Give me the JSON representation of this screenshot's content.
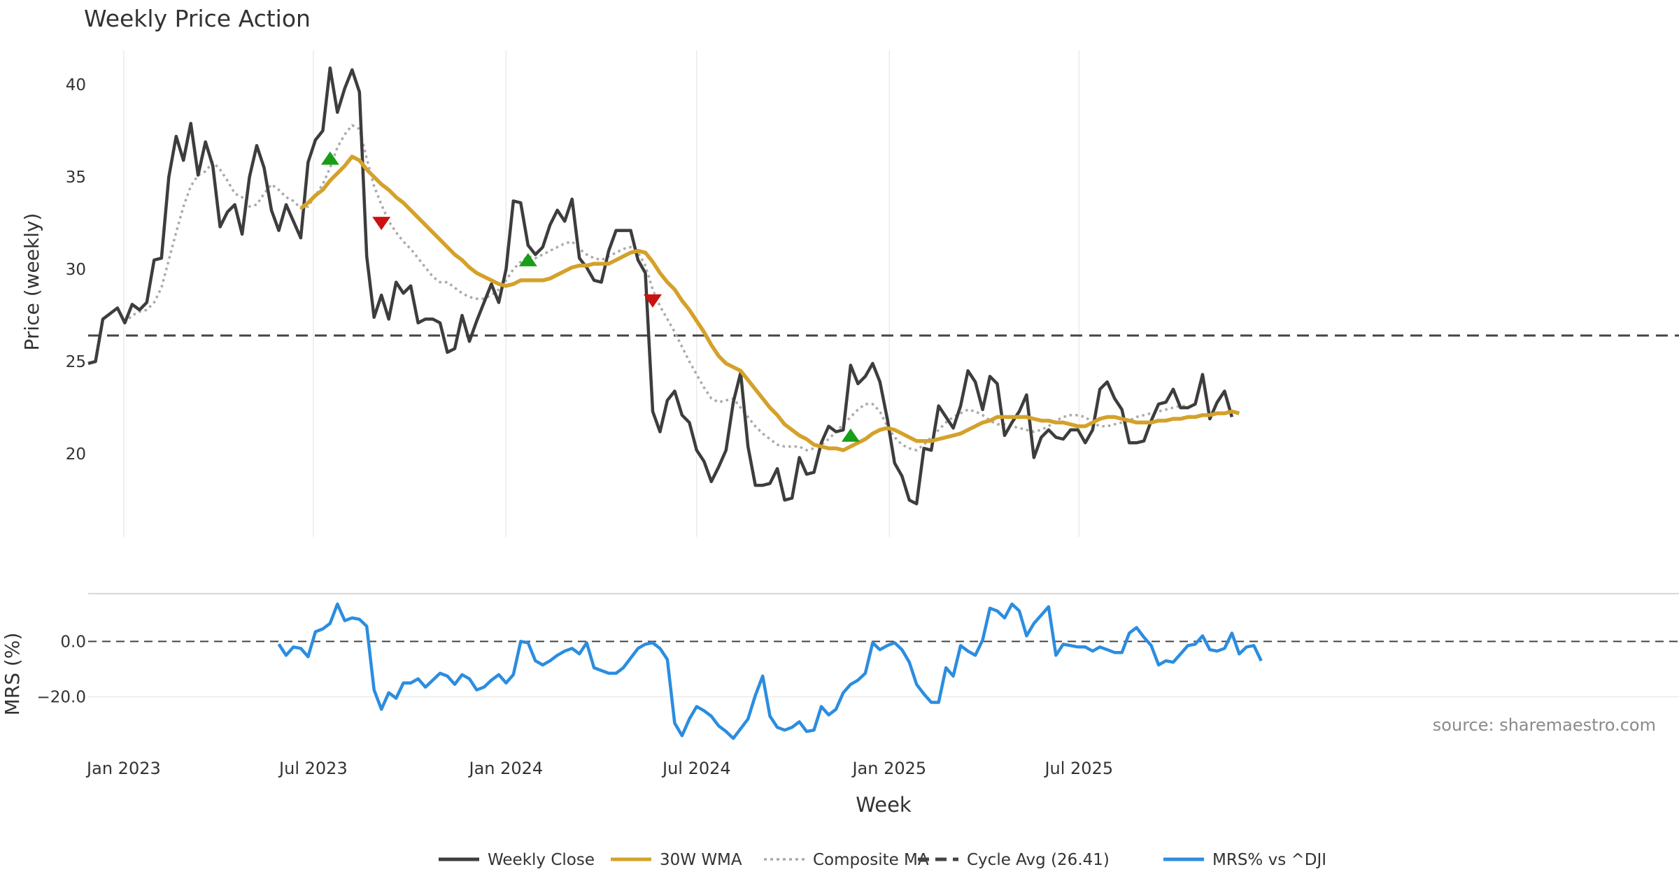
{
  "chart_data": [
    {
      "type": "line",
      "title": "Weekly Price Action",
      "ylabel": "Price (weekly)",
      "xlabel": "",
      "ylim": [
        15.5,
        42.5
      ],
      "yticks": [
        20,
        25,
        30,
        35,
        40
      ],
      "grid": "vertical",
      "x_start": "2022-11-28",
      "x_step_days": 7,
      "series": [
        {
          "name": "Weekly Close",
          "color": "#3d3d3d",
          "style": "solid",
          "start_index": 0,
          "values": [
            24.9,
            25.0,
            27.3,
            27.6,
            27.9,
            27.1,
            28.1,
            27.8,
            28.2,
            30.5,
            30.6,
            35.0,
            37.2,
            35.9,
            37.9,
            35.1,
            36.9,
            35.6,
            32.3,
            33.1,
            33.5,
            31.9,
            35.0,
            36.7,
            35.5,
            33.2,
            32.1,
            33.5,
            32.6,
            31.7,
            35.8,
            37.0,
            37.5,
            40.9,
            38.5,
            39.8,
            40.8,
            39.6,
            30.7,
            27.4,
            28.6,
            27.3,
            29.3,
            28.7,
            29.1,
            27.1,
            27.3,
            27.3,
            27.1,
            25.5,
            25.7,
            27.5,
            26.1,
            27.2,
            28.2,
            29.2,
            28.2,
            30.0,
            33.7,
            33.6,
            31.3,
            30.8,
            31.2,
            32.4,
            33.2,
            32.6,
            33.8,
            30.6,
            30.1,
            29.4,
            29.3,
            31.0,
            32.1,
            32.1,
            32.1,
            30.5,
            29.8,
            22.3,
            21.2,
            22.9,
            23.4,
            22.1,
            21.7,
            20.2,
            19.6,
            18.5,
            19.3,
            20.2,
            22.8,
            24.4,
            20.4,
            18.3,
            18.3,
            18.4,
            19.2,
            17.5,
            17.6,
            19.8,
            18.9,
            19.0,
            20.6,
            21.5,
            21.2,
            21.3,
            24.8,
            23.8,
            24.2,
            24.9,
            23.9,
            21.9,
            19.5,
            18.8,
            17.5,
            17.3,
            20.3,
            20.2,
            22.6,
            22.0,
            21.4,
            22.6,
            24.5,
            23.9,
            22.4,
            24.2,
            23.8,
            21.0,
            21.7,
            22.3,
            23.2,
            19.8,
            20.9,
            21.3,
            20.9,
            20.8,
            21.3,
            21.3,
            20.6,
            21.3,
            23.5,
            23.9,
            23.0,
            22.4,
            20.6,
            20.6,
            20.7,
            21.8,
            22.7,
            22.8,
            23.5,
            22.5,
            22.5,
            22.7,
            24.3,
            21.9,
            22.8,
            23.4,
            22.0
          ]
        },
        {
          "name": "Composite MA",
          "color": "#aaaaaa",
          "style": "dotted",
          "start_index": 5,
          "values": [
            27.1,
            27.5,
            27.7,
            27.8,
            28.2,
            29.0,
            30.5,
            32.0,
            33.4,
            34.5,
            35.1,
            35.3,
            35.8,
            35.4,
            34.8,
            34.1,
            33.9,
            33.4,
            33.5,
            34.1,
            34.6,
            34.3,
            33.9,
            33.7,
            33.3,
            33.4,
            34.0,
            34.6,
            35.5,
            36.6,
            37.3,
            37.8,
            37.6,
            36.0,
            34.5,
            33.5,
            32.6,
            32.0,
            31.5,
            31.1,
            30.6,
            30.1,
            29.6,
            29.3,
            29.3,
            29.0,
            28.7,
            28.5,
            28.4,
            28.4,
            28.6,
            28.9,
            29.4,
            30.0,
            30.4,
            30.7,
            30.6,
            30.8,
            31.0,
            31.2,
            31.4,
            31.5,
            31.1,
            30.8,
            30.6,
            30.5,
            30.7,
            30.9,
            31.1,
            31.2,
            30.9,
            30.2,
            28.9,
            28.0,
            27.3,
            26.6,
            25.8,
            25.0,
            24.3,
            23.6,
            23.0,
            22.8,
            22.9,
            23.0,
            22.5,
            22.0,
            21.5,
            21.1,
            20.8,
            20.5,
            20.4,
            20.4,
            20.4,
            20.2,
            20.3,
            20.5,
            20.8,
            21.2,
            21.6,
            22.0,
            22.4,
            22.7,
            22.7,
            22.3,
            21.5,
            20.9,
            20.5,
            20.3,
            20.2,
            20.5,
            20.9,
            21.3,
            21.7,
            22.0,
            22.2,
            22.4,
            22.3,
            22.1,
            21.8,
            21.6,
            21.6,
            21.5,
            21.4,
            21.3,
            21.2,
            21.3,
            21.5,
            21.8,
            22.0,
            22.1,
            22.1,
            22.0,
            21.7,
            21.5,
            21.5,
            21.6,
            21.7,
            21.8,
            22.0,
            22.1,
            22.2,
            22.3,
            22.4,
            22.5,
            22.6,
            22.6
          ]
        },
        {
          "name": "30W WMA",
          "color": "#d4a12a",
          "style": "solid",
          "start_index": 29,
          "values": [
            33.3,
            33.6,
            34.0,
            34.3,
            34.8,
            35.2,
            35.6,
            36.1,
            35.9,
            35.4,
            35.0,
            34.6,
            34.3,
            33.9,
            33.6,
            33.2,
            32.8,
            32.4,
            32.0,
            31.6,
            31.2,
            30.8,
            30.5,
            30.1,
            29.8,
            29.6,
            29.4,
            29.2,
            29.1,
            29.2,
            29.4,
            29.4,
            29.4,
            29.4,
            29.5,
            29.7,
            29.9,
            30.1,
            30.2,
            30.2,
            30.3,
            30.3,
            30.3,
            30.5,
            30.7,
            30.9,
            31.0,
            30.9,
            30.4,
            29.8,
            29.3,
            28.9,
            28.3,
            27.8,
            27.2,
            26.6,
            25.9,
            25.3,
            24.9,
            24.7,
            24.5,
            24.0,
            23.5,
            23.0,
            22.5,
            22.1,
            21.6,
            21.3,
            21.0,
            20.8,
            20.5,
            20.4,
            20.3,
            20.3,
            20.2,
            20.4,
            20.6,
            20.8,
            21.1,
            21.3,
            21.4,
            21.3,
            21.1,
            20.9,
            20.7,
            20.7,
            20.7,
            20.8,
            20.9,
            21.0,
            21.1,
            21.3,
            21.5,
            21.7,
            21.8,
            22.0,
            22.0,
            22.0,
            22.0,
            22.0,
            21.9,
            21.8,
            21.8,
            21.7,
            21.7,
            21.6,
            21.5,
            21.5,
            21.7,
            21.9,
            22.0,
            22.0,
            21.9,
            21.8,
            21.7,
            21.7,
            21.7,
            21.8,
            21.8,
            21.9,
            21.9,
            22.0,
            22.0,
            22.1,
            22.1,
            22.2,
            22.2,
            22.3,
            22.2
          ]
        }
      ],
      "reference_line": {
        "name": "Cycle Avg (26.41)",
        "value": 26.41,
        "color": "#444444",
        "style": "dashed"
      },
      "markers": [
        {
          "type": "up",
          "index": 33,
          "y": 36.0,
          "color": "#1a9e1a"
        },
        {
          "type": "down",
          "index": 40,
          "y": 32.5,
          "color": "#cc1111"
        },
        {
          "type": "up",
          "index": 60,
          "y": 30.5,
          "color": "#1a9e1a"
        },
        {
          "type": "down",
          "index": 77,
          "y": 28.3,
          "color": "#cc1111"
        },
        {
          "type": "up",
          "index": 104,
          "y": 21.0,
          "color": "#1a9e1a"
        }
      ]
    },
    {
      "type": "line",
      "ylabel": "MRS (%)",
      "xlabel": "Week",
      "ylim": [
        -36,
        17
      ],
      "yticks": [
        0.0,
        -20.0
      ],
      "ytick_labels": [
        "0.0",
        "−20.0"
      ],
      "x_ticks": [
        "Jan 2023",
        "Jul 2023",
        "Jan 2024",
        "Jul 2024",
        "Jan 2025",
        "Jul 2025"
      ],
      "x_tick_dates": [
        "2023-01-01",
        "2023-07-01",
        "2024-01-01",
        "2024-07-01",
        "2025-01-01",
        "2025-07-01"
      ],
      "series": [
        {
          "name": "MRS% vs ^DJI",
          "color": "#2b8de0",
          "style": "solid",
          "start_index": 26,
          "values": [
            -1,
            -5,
            -2,
            -2.5,
            -5.5,
            3.5,
            4.5,
            6.5,
            13.5,
            7.5,
            8.5,
            8,
            5.5,
            -17.5,
            -24.5,
            -18.5,
            -20.5,
            -15,
            -15,
            -13.5,
            -16.5,
            -14,
            -11.5,
            -12.5,
            -15.5,
            -12,
            -13.5,
            -17.5,
            -16.5,
            -14,
            -12,
            -15,
            -12,
            0,
            -0.5,
            -7,
            -8.5,
            -7,
            -5,
            -3.5,
            -2.5,
            -4.5,
            -0.5,
            -9.5,
            -10.5,
            -11.5,
            -11.5,
            -9.5,
            -6,
            -2.5,
            -1,
            -0.5,
            -2.5,
            -6.5,
            -29.5,
            -34,
            -28,
            -23.5,
            -25,
            -27,
            -30.5,
            -32.5,
            -35,
            -31.5,
            -28,
            -19.5,
            -12.5,
            -27,
            -31,
            -32,
            -31,
            -29,
            -32.5,
            -32,
            -23.5,
            -26.5,
            -24.5,
            -18.5,
            -15.5,
            -14,
            -11.5,
            -0.5,
            -3,
            -1.5,
            -0.5,
            -3,
            -7.5,
            -15.5,
            -19,
            -22,
            -22,
            -9.5,
            -12.5,
            -1.5,
            -3.5,
            -5,
            0.5,
            12,
            11,
            8.5,
            13.5,
            11,
            2,
            6.5,
            9.5,
            12.5,
            -5,
            -1,
            -1.5,
            -2,
            -2,
            -3.5,
            -2,
            -3,
            -4,
            -4,
            3,
            5,
            1.5,
            -1.5,
            -8.5,
            -7,
            -7.5,
            -4.5,
            -1.5,
            -1,
            2,
            -3,
            -3.5,
            -2.5,
            3,
            -4.5,
            -2,
            -1.5,
            -7
          ]
        }
      ],
      "reference_line": {
        "value": 0,
        "color": "#444444",
        "style": "dashed"
      },
      "annotation": "source: sharemaestro.com"
    }
  ],
  "legend": [
    {
      "label": "Weekly Close",
      "color": "#3d3d3d",
      "style": "solid"
    },
    {
      "label": "30W WMA",
      "color": "#d4a12a",
      "style": "solid"
    },
    {
      "label": "Composite MA",
      "color": "#aaaaaa",
      "style": "dotted"
    },
    {
      "label": "Cycle Avg (26.41)",
      "color": "#444444",
      "style": "dashed"
    },
    {
      "label": "MRS% vs ^DJI",
      "color": "#2b8de0",
      "style": "solid"
    }
  ]
}
